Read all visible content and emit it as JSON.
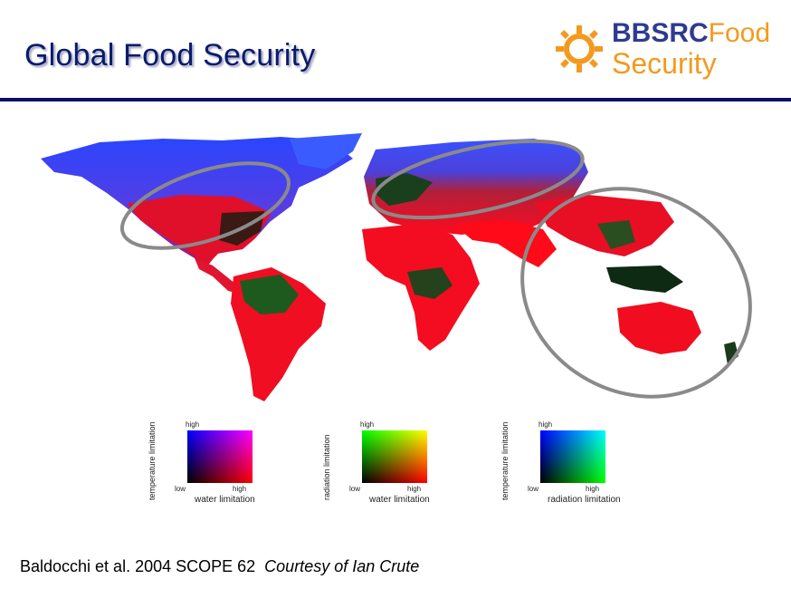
{
  "slide": {
    "title": "Global Food Security",
    "caption_main": "Baldocchi et al. 2004 SCOPE 62",
    "caption_italic": "Courtesy of Ian Crute"
  },
  "logo": {
    "brand": "BBSRC",
    "word1": "Food",
    "word2": "Security",
    "brand_color": "#2e3b8f",
    "accent_color": "#f39a1e"
  },
  "legends": [
    {
      "y_label": "temperature limitation",
      "x_label": "water limitation",
      "high": "high",
      "low": "low",
      "x_high": "high",
      "colors": [
        "#000000",
        "#ff0000",
        "#0000ff",
        "#ff00ff"
      ]
    },
    {
      "y_label": "radiation limitation",
      "x_label": "water limitation",
      "high": "high",
      "low": "low",
      "x_high": "high",
      "colors": [
        "#000000",
        "#ff0000",
        "#00ff00",
        "#ffff00"
      ]
    },
    {
      "y_label": "temperature limitation",
      "x_label": "radiation limitation",
      "high": "high",
      "low": "low",
      "x_high": "high",
      "colors": [
        "#000000",
        "#00ff00",
        "#0000ff",
        "#00ffff"
      ]
    }
  ]
}
